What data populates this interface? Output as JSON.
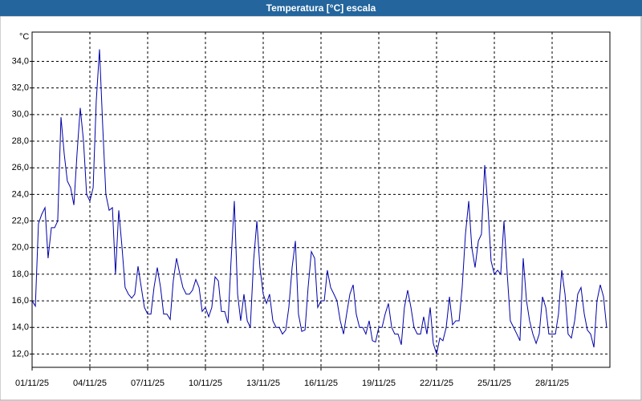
{
  "chart_data": {
    "type": "line",
    "title": "Temperatura [°C] escala",
    "ylabel": "°C",
    "color": "#0000a8",
    "grid": true,
    "xlim": [
      1,
      31
    ],
    "ylim": [
      11,
      36.2
    ],
    "xticks": [
      {
        "value": 1,
        "label": "01/11/25"
      },
      {
        "value": 4,
        "label": "04/11/25"
      },
      {
        "value": 7,
        "label": "07/11/25"
      },
      {
        "value": 10,
        "label": "10/11/25"
      },
      {
        "value": 13,
        "label": "13/11/25"
      },
      {
        "value": 16,
        "label": "16/11/25"
      },
      {
        "value": 19,
        "label": "19/11/25"
      },
      {
        "value": 22,
        "label": "22/11/25"
      },
      {
        "value": 25,
        "label": "25/11/25"
      },
      {
        "value": 28,
        "label": "28/11/25"
      }
    ],
    "yticks": [
      {
        "value": 12,
        "label": "12,0"
      },
      {
        "value": 14,
        "label": "14,0"
      },
      {
        "value": 16,
        "label": "16,0"
      },
      {
        "value": 18,
        "label": "18,0"
      },
      {
        "value": 20,
        "label": "20,0"
      },
      {
        "value": 22,
        "label": "22,0"
      },
      {
        "value": 24,
        "label": "24,0"
      },
      {
        "value": 26,
        "label": "26,0"
      },
      {
        "value": 28,
        "label": "28,0"
      },
      {
        "value": 30,
        "label": "30,0"
      },
      {
        "value": 32,
        "label": "32,0"
      },
      {
        "value": 34,
        "label": "34,0"
      }
    ],
    "x": [
      1,
      1.17,
      1.33,
      1.5,
      1.67,
      1.83,
      2,
      2.17,
      2.33,
      2.5,
      2.67,
      2.83,
      3,
      3.17,
      3.33,
      3.5,
      3.67,
      3.83,
      4,
      4.17,
      4.33,
      4.5,
      4.67,
      4.83,
      5,
      5.17,
      5.33,
      5.5,
      5.67,
      5.83,
      6,
      6.17,
      6.33,
      6.5,
      6.67,
      6.83,
      7,
      7.17,
      7.33,
      7.5,
      7.67,
      7.83,
      8,
      8.17,
      8.33,
      8.5,
      8.67,
      8.83,
      9,
      9.17,
      9.33,
      9.5,
      9.67,
      9.83,
      10,
      10.17,
      10.33,
      10.5,
      10.67,
      10.83,
      11,
      11.17,
      11.33,
      11.5,
      11.67,
      11.83,
      12,
      12.17,
      12.33,
      12.5,
      12.67,
      12.83,
      13,
      13.17,
      13.33,
      13.5,
      13.67,
      13.83,
      14,
      14.17,
      14.33,
      14.5,
      14.67,
      14.83,
      15,
      15.17,
      15.33,
      15.5,
      15.67,
      15.83,
      16,
      16.17,
      16.33,
      16.5,
      16.67,
      16.83,
      17,
      17.17,
      17.33,
      17.5,
      17.67,
      17.83,
      18,
      18.17,
      18.33,
      18.5,
      18.67,
      18.83,
      19,
      19.17,
      19.33,
      19.5,
      19.67,
      19.83,
      20,
      20.17,
      20.33,
      20.5,
      20.67,
      20.83,
      21,
      21.17,
      21.33,
      21.5,
      21.67,
      21.83,
      22,
      22.17,
      22.33,
      22.5,
      22.67,
      22.83,
      23,
      23.17,
      23.33,
      23.5,
      23.67,
      23.83,
      24,
      24.17,
      24.33,
      24.5,
      24.67,
      24.83,
      25,
      25.17,
      25.33,
      25.5,
      25.67,
      25.83,
      26,
      26.17,
      26.33,
      26.5,
      26.67,
      26.83,
      27,
      27.17,
      27.33,
      27.5,
      27.67,
      27.83,
      28,
      28.17,
      28.33,
      28.5,
      28.67,
      28.83,
      29,
      29.17,
      29.33,
      29.5,
      29.67,
      29.83,
      30,
      30.17,
      30.33,
      30.5,
      30.67,
      30.83
    ],
    "values": [
      16,
      15.6,
      21.8,
      22.5,
      23,
      19.2,
      21.5,
      21.5,
      22,
      29.8,
      27,
      25,
      24.5,
      23.2,
      27,
      30.5,
      28,
      24,
      23.5,
      24.5,
      31,
      34.9,
      29,
      24,
      22.8,
      23,
      18,
      22.8,
      20,
      17,
      16.5,
      16.2,
      16.5,
      18.6,
      17,
      15.5,
      15,
      15,
      17,
      18.5,
      17,
      15,
      15,
      14.6,
      17.5,
      19.2,
      18,
      17,
      16.5,
      16.5,
      16.8,
      17.6,
      17,
      15.2,
      15.5,
      14.8,
      15.5,
      17.8,
      17.5,
      15.2,
      15.2,
      14.3,
      19,
      23.5,
      16.5,
      14.5,
      16.5,
      14.5,
      14,
      19,
      22,
      18.5,
      16.5,
      15.8,
      16.5,
      14.5,
      14,
      14,
      13.5,
      13.8,
      15.5,
      18.5,
      20.5,
      15,
      13.7,
      13.8,
      17,
      19.7,
      19.2,
      15.5,
      16,
      16,
      18.3,
      17,
      16.5,
      16,
      14.5,
      13.5,
      15,
      16.5,
      17.2,
      15,
      14,
      14,
      13.5,
      14.5,
      13,
      12.9,
      14,
      14,
      15,
      15.8,
      14,
      13.5,
      13.5,
      12.7,
      15.5,
      16.8,
      15.5,
      14,
      13.5,
      13.5,
      14.8,
      13.5,
      15.5,
      12.8,
      12,
      13.2,
      13,
      14,
      16.3,
      14.2,
      14.5,
      14.5,
      17,
      21,
      23.5,
      20,
      18.5,
      20.5,
      21,
      26.2,
      23,
      19,
      18,
      18.3,
      18,
      22,
      18,
      14.5,
      14,
      13.5,
      13,
      19.2,
      16,
      14.5,
      13.5,
      12.8,
      13.5,
      16.3,
      15.5,
      13.5,
      13.5,
      13.5,
      15,
      18.3,
      16.5,
      13.5,
      13.2,
      14.5,
      16.5,
      17,
      15,
      13.8,
      13.5,
      12.5,
      16,
      17.2,
      16.3,
      14
    ]
  }
}
